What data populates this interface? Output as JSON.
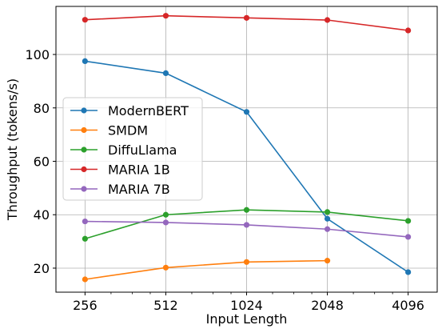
{
  "chart_data": {
    "type": "line",
    "xlabel": "Input Length",
    "ylabel": "Throughput (tokens/s)",
    "x_scale": "log2",
    "x": [
      256,
      512,
      1024,
      2048,
      4096
    ],
    "x_tick_labels": [
      "256",
      "512",
      "1024",
      "2048",
      "4096"
    ],
    "y_ticks": [
      20,
      40,
      60,
      80,
      100
    ],
    "y_tick_labels": [
      "20",
      "40",
      "60",
      "80",
      "100"
    ],
    "ylim": [
      11,
      118
    ],
    "grid": true,
    "legend_position": "center-left",
    "series": [
      {
        "name": "ModernBERT",
        "color": "#1f77b4",
        "values": [
          97.5,
          93.0,
          78.5,
          38.5,
          18.5
        ]
      },
      {
        "name": "SMDM",
        "color": "#ff7f0e",
        "values": [
          15.8,
          20.2,
          22.3,
          22.8,
          null
        ]
      },
      {
        "name": "DiffuLlama",
        "color": "#2ca02c",
        "values": [
          31.0,
          40.0,
          41.8,
          41.0,
          37.7
        ]
      },
      {
        "name": "MARIA 1B",
        "color": "#d62728",
        "values": [
          113.0,
          114.5,
          113.7,
          112.9,
          109.0
        ]
      },
      {
        "name": "MARIA 7B",
        "color": "#9467bd",
        "values": [
          37.5,
          37.1,
          36.2,
          34.6,
          31.7
        ]
      }
    ]
  }
}
